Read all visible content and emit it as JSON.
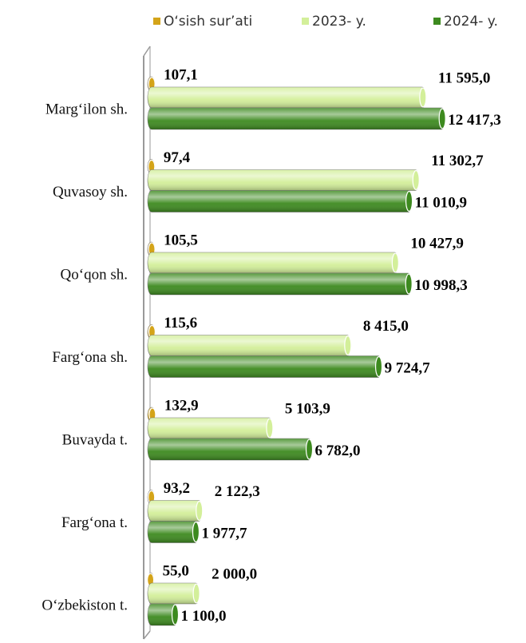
{
  "chart_data": {
    "type": "bar",
    "orientation": "horizontal",
    "categories": [
      "Marg‘ilon sh.",
      "Quvasoy sh.",
      "Qo‘qon sh.",
      "Farg‘ona sh.",
      "Buvayda t.",
      "Farg‘ona t.",
      "O‘zbekiston t."
    ],
    "series": [
      {
        "name": "O‘sish sur’ati",
        "color": "#d4a419",
        "values": [
          107.1,
          97.4,
          105.5,
          115.6,
          132.9,
          93.2,
          55.0
        ],
        "value_labels": [
          "107,1",
          "97,4",
          "105,5",
          "115,6",
          "132,9",
          "93,2",
          "55,0"
        ]
      },
      {
        "name": "2023- y.",
        "color": "#d3ef9a",
        "values": [
          11595.0,
          11302.7,
          10427.9,
          8415.0,
          5103.9,
          2122.3,
          2000.0
        ],
        "value_labels": [
          "11 595,0",
          "11 302,7",
          "10 427,9",
          "8 415,0",
          "5 103,9",
          "2 122,3",
          "2 000,0"
        ]
      },
      {
        "name": "2024- y.",
        "color": "#3d8a1f",
        "values": [
          12417.3,
          11010.9,
          10998.3,
          9724.7,
          6782.0,
          1977.7,
          1100.0
        ],
        "value_labels": [
          "12 417,3",
          "11 010,9",
          "10 998,3",
          "9 724,7",
          "6 782,0",
          "1 977,7",
          "1 100,0"
        ]
      }
    ],
    "xlim": [
      0,
      14000
    ],
    "legend": "top"
  }
}
